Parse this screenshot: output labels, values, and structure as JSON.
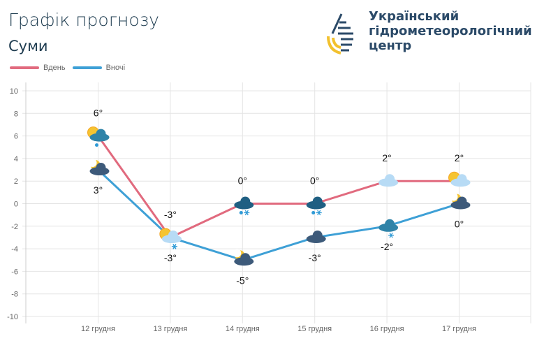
{
  "header": {
    "title": "Графік прогнозу",
    "city": "Суми"
  },
  "logo": {
    "org_lines": [
      "Український",
      "гідрометеорологічний",
      "центр"
    ]
  },
  "chart_data": {
    "type": "line",
    "categories": [
      "12 грудня",
      "13 грудня",
      "14 грудня",
      "15 грудня",
      "16 грудня",
      "17 грудня"
    ],
    "ylim": [
      -10,
      10
    ],
    "yticks": [
      10,
      8,
      6,
      4,
      2,
      0,
      -2,
      -4,
      -6,
      -8,
      -10
    ],
    "grid": true,
    "legend_position": "top-left",
    "series": [
      {
        "name": "Вдень",
        "color": "#e16a7e",
        "values": [
          6,
          -3,
          0,
          0,
          2,
          2
        ],
        "labels": [
          "6°",
          "-3°",
          "0°",
          "0°",
          "2°",
          "2°"
        ],
        "icons": [
          "sun-cloud-rain",
          "sun-cloud-snow",
          "cloud-rain-snow",
          "cloud-rain-snow",
          "cloud",
          "sun-cloud"
        ]
      },
      {
        "name": "Вночі",
        "color": "#3ea0d6",
        "values": [
          3,
          -3,
          -5,
          -3,
          -2,
          0
        ],
        "labels": [
          "3°",
          "-3°",
          "-5°",
          "-3°",
          "-2°",
          "0°"
        ],
        "icons": [
          "moon-cloud",
          "sun-cloud-snow",
          "moon-cloud",
          "cloud",
          "cloud-snow",
          "moon-cloud"
        ]
      }
    ]
  }
}
